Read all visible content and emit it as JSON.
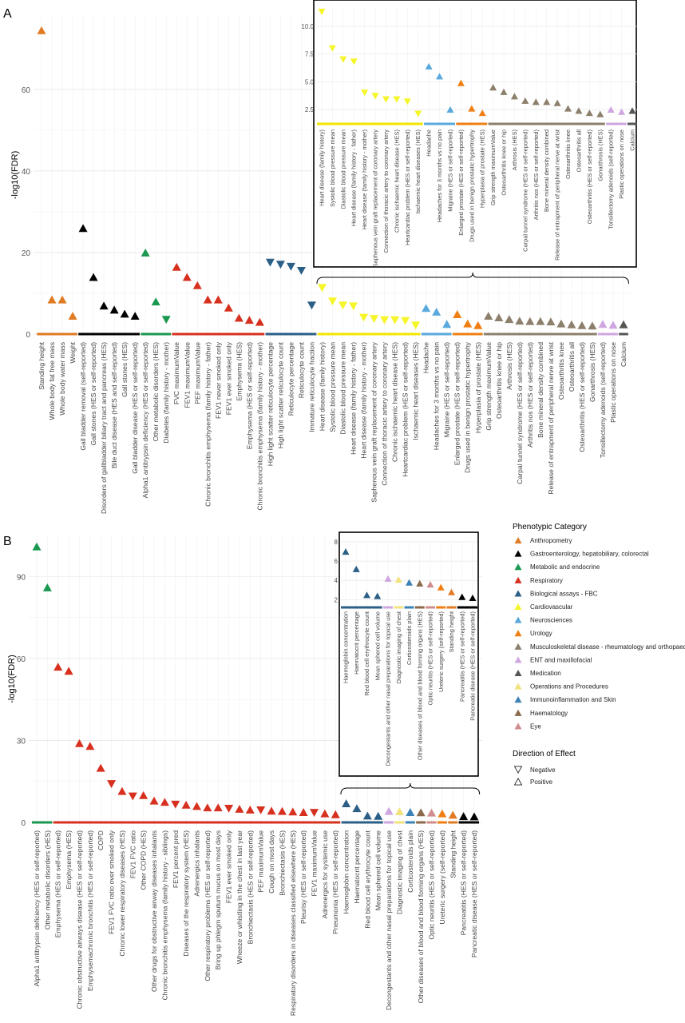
{
  "palette": {
    "Anthropometry": "#e07b24",
    "Gastroenterology": "#000000",
    "Metabolic": "#1a9850",
    "Respiratory": "#d7301f",
    "FBC": "#2b5f86",
    "Cardiovascular": "#f5f52a",
    "Neurosciences": "#5aa9dc",
    "Urology": "#ef7f13",
    "Musculoskeletal": "#8c7f6c",
    "ENT": "#cfa6e0",
    "Medication": "#555555",
    "Operations": "#f1e27c",
    "Immuno": "#3b83b6",
    "Haematology": "#8b6a4c",
    "Eye": "#d08c8c"
  },
  "legend": {
    "title": "Phenotypic Category",
    "items": [
      {
        "label": "Anthropometry",
        "color": "#e07b24"
      },
      {
        "label": "Gastroenterology, hepatobiliary, colorectal",
        "color": "#000000"
      },
      {
        "label": "Metabolic and endocrine",
        "color": "#1a9850"
      },
      {
        "label": "Respiratory",
        "color": "#d7301f"
      },
      {
        "label": "Biological assays - FBC",
        "color": "#2b5f86"
      },
      {
        "label": "Cardiovascular",
        "color": "#f5f52a"
      },
      {
        "label": "Neurosciences",
        "color": "#5aa9dc"
      },
      {
        "label": "Urology",
        "color": "#ef7f13"
      },
      {
        "label": "Musculoskeletal disease - rheumatology and orthopaedics",
        "color": "#8c7f6c"
      },
      {
        "label": "ENT and maxillofacial",
        "color": "#cfa6e0"
      },
      {
        "label": "Medication",
        "color": "#555555"
      },
      {
        "label": "Operations and Procedures",
        "color": "#f1e27c"
      },
      {
        "label": "Immunoinflammation and Skin",
        "color": "#3b83b6"
      },
      {
        "label": "Haematology",
        "color": "#8b6a4c"
      },
      {
        "label": "Eye",
        "color": "#d08c8c"
      }
    ],
    "direction_title": "Direction of Effect",
    "directions": [
      {
        "label": "Negative",
        "shape": "down"
      },
      {
        "label": "Positive",
        "shape": "up"
      }
    ]
  },
  "chart_data": [
    {
      "panel_label": "A",
      "type": "scatter",
      "ylabel": "-log10(FDR)",
      "yticks": [
        0,
        20,
        40,
        60
      ],
      "ylim": [
        0,
        78
      ],
      "points": [
        {
          "label": "Standing height",
          "value": 74.5,
          "dir": "up",
          "cat": "Anthropometry"
        },
        {
          "label": "Whole body fat free mass",
          "value": 8.5,
          "dir": "up",
          "cat": "Anthropometry"
        },
        {
          "label": "Whole body water mass",
          "value": 8.5,
          "dir": "up",
          "cat": "Anthropometry"
        },
        {
          "label": "Weight",
          "value": 4.5,
          "dir": "up",
          "cat": "Anthropometry"
        },
        {
          "label": "Gall bladder removal (self-reported)",
          "value": 26,
          "dir": "up",
          "cat": "Gastroenterology"
        },
        {
          "label": "Gall stones (HES or self-reported)",
          "value": 14,
          "dir": "up",
          "cat": "Gastroenterology"
        },
        {
          "label": "Disorders of gallbladder biliary tract and pancreas (HES)",
          "value": 7,
          "dir": "up",
          "cat": "Gastroenterology"
        },
        {
          "label": "Bile duct disease (HES and self-reported)",
          "value": 6,
          "dir": "up",
          "cat": "Gastroenterology"
        },
        {
          "label": "Gall stones (HES)",
          "value": 5,
          "dir": "up",
          "cat": "Gastroenterology"
        },
        {
          "label": "Gall bladder disease (HES or self-reported)",
          "value": 4.5,
          "dir": "up",
          "cat": "Gastroenterology"
        },
        {
          "label": "Alpha1 antitrypsin deficiency (HES or self-reported)",
          "value": 20,
          "dir": "up",
          "cat": "Metabolic"
        },
        {
          "label": "Other metabolic disorders (HES)",
          "value": 8,
          "dir": "up",
          "cat": "Metabolic"
        },
        {
          "label": "Diabetes (family history - mother)",
          "value": 3.5,
          "dir": "down",
          "cat": "Metabolic"
        },
        {
          "label": "FVC maximumValue",
          "value": 16.5,
          "dir": "up",
          "cat": "Respiratory"
        },
        {
          "label": "FEV1 maximumValue",
          "value": 14,
          "dir": "up",
          "cat": "Respiratory"
        },
        {
          "label": "PEF maximumValue",
          "value": 12,
          "dir": "up",
          "cat": "Respiratory"
        },
        {
          "label": "Chronic bronchitis emphysema (family history - father)",
          "value": 8.5,
          "dir": "up",
          "cat": "Respiratory"
        },
        {
          "label": "FEV1 never smoked only",
          "value": 8.5,
          "dir": "up",
          "cat": "Respiratory"
        },
        {
          "label": "FEV1 ever smoked only",
          "value": 6.5,
          "dir": "up",
          "cat": "Respiratory"
        },
        {
          "label": "Emphysema (HES)",
          "value": 4,
          "dir": "up",
          "cat": "Respiratory"
        },
        {
          "label": "Emphysema (HES or self-reported)",
          "value": 3.5,
          "dir": "up",
          "cat": "Respiratory"
        },
        {
          "label": "Chronic bronchitis emphysema (family history - mother)",
          "value": 3,
          "dir": "up",
          "cat": "Respiratory"
        },
        {
          "label": "High light scatter reticulocyte percentage",
          "value": 17.5,
          "dir": "down",
          "cat": "FBC"
        },
        {
          "label": "High light scatter reticulocyte count",
          "value": 17,
          "dir": "down",
          "cat": "FBC"
        },
        {
          "label": "Reticulocyte percentage",
          "value": 16.5,
          "dir": "down",
          "cat": "FBC"
        },
        {
          "label": "Reticulocyte count",
          "value": 15.5,
          "dir": "down",
          "cat": "FBC"
        },
        {
          "label": "Immature reticulocyte fraction",
          "value": 7,
          "dir": "down",
          "cat": "FBC"
        },
        {
          "label": "Heart disease (family history)",
          "value": 11.3,
          "dir": "down",
          "cat": "Cardiovascular"
        },
        {
          "label": "Systolic blood pressure mean",
          "value": 8,
          "dir": "down",
          "cat": "Cardiovascular"
        },
        {
          "label": "Diastolic blood pressure mean",
          "value": 7,
          "dir": "down",
          "cat": "Cardiovascular"
        },
        {
          "label": "Heart disease (family history - father)",
          "value": 6.8,
          "dir": "down",
          "cat": "Cardiovascular"
        },
        {
          "label": "Heart disease (family history - mother)",
          "value": 4,
          "dir": "down",
          "cat": "Cardiovascular"
        },
        {
          "label": "Saphenous vein graft replacement of coronary artery",
          "value": 3.7,
          "dir": "down",
          "cat": "Cardiovascular"
        },
        {
          "label": "Connection of thoracic artery to coronary artery",
          "value": 3.4,
          "dir": "down",
          "cat": "Cardiovascular"
        },
        {
          "label": "Chronic ischaemic heart disease (HES)",
          "value": 3.4,
          "dir": "down",
          "cat": "Cardiovascular"
        },
        {
          "label": "Heartcardiac problem (HES or self-reported)",
          "value": 3.2,
          "dir": "down",
          "cat": "Cardiovascular"
        },
        {
          "label": "Ischaemic heart diseases (HES)",
          "value": 2.1,
          "dir": "down",
          "cat": "Cardiovascular"
        },
        {
          "label": "Headache",
          "value": 6.4,
          "dir": "up",
          "cat": "Neurosciences"
        },
        {
          "label": "Headaches for 3 months vs no pain",
          "value": 5.5,
          "dir": "up",
          "cat": "Neurosciences"
        },
        {
          "label": "Migraine (HES or self-reported)",
          "value": 2.5,
          "dir": "up",
          "cat": "Neurosciences"
        },
        {
          "label": "Enlarged prostate (HES or self-reported)",
          "value": 4.9,
          "dir": "up",
          "cat": "Urology"
        },
        {
          "label": "Drugs used in benign prostatic hypertrophy",
          "value": 2.6,
          "dir": "up",
          "cat": "Urology"
        },
        {
          "label": "Hyperplasia of prostate (HES)",
          "value": 2.2,
          "dir": "up",
          "cat": "Urology"
        },
        {
          "label": "Grip strength maximumValue",
          "value": 4.5,
          "dir": "up",
          "cat": "Musculoskeletal"
        },
        {
          "label": "Osteoarthritis knee or hip",
          "value": 4.1,
          "dir": "up",
          "cat": "Musculoskeletal"
        },
        {
          "label": "Arthrosis (HES)",
          "value": 3.7,
          "dir": "up",
          "cat": "Musculoskeletal"
        },
        {
          "label": "Carpal tunnel syndrome (HES or self-reported)",
          "value": 3.3,
          "dir": "up",
          "cat": "Musculoskeletal"
        },
        {
          "label": "Arthritis nos (HES or self-reported)",
          "value": 3.2,
          "dir": "up",
          "cat": "Musculoskeletal"
        },
        {
          "label": "Bone mineral density combined",
          "value": 3.2,
          "dir": "up",
          "cat": "Musculoskeletal"
        },
        {
          "label": "Release of entrapment of peripheral nerve at wrist",
          "value": 3.1,
          "dir": "up",
          "cat": "Musculoskeletal"
        },
        {
          "label": "Osteoarthritis knee",
          "value": 2.6,
          "dir": "up",
          "cat": "Musculoskeletal"
        },
        {
          "label": "Osteoarthritis all",
          "value": 2.4,
          "dir": "up",
          "cat": "Musculoskeletal"
        },
        {
          "label": "Osteoarthritis (HES or self-reported)",
          "value": 2.2,
          "dir": "up",
          "cat": "Musculoskeletal"
        },
        {
          "label": "Gonarthrosis (HES)",
          "value": 2.1,
          "dir": "up",
          "cat": "Musculoskeletal"
        },
        {
          "label": "Tonsillectomy adenoids (self-reported)",
          "value": 2.5,
          "dir": "up",
          "cat": "ENT"
        },
        {
          "label": "Plastic operations on nose",
          "value": 2.3,
          "dir": "up",
          "cat": "ENT"
        },
        {
          "label": "Calcium",
          "value": 2.4,
          "dir": "up",
          "cat": "Medication"
        }
      ],
      "inset": {
        "from_index": 27,
        "ylim": [
          1.2,
          11.8
        ],
        "yticks": [
          "2.5",
          "5.0",
          "7.5",
          "10.0"
        ]
      }
    },
    {
      "panel_label": "B",
      "type": "scatter",
      "ylabel": "-log10(FDR)",
      "yticks": [
        0,
        30,
        60,
        90
      ],
      "ylim": [
        0,
        105
      ],
      "points": [
        {
          "label": "Alpha1 antitrypsin deficiency (HES or self-reported)",
          "value": 101,
          "dir": "up",
          "cat": "Metabolic"
        },
        {
          "label": "Other metabolic disorders (HES)",
          "value": 86,
          "dir": "up",
          "cat": "Metabolic"
        },
        {
          "label": "Emphysema (HES or self-reported)",
          "value": 57,
          "dir": "up",
          "cat": "Respiratory"
        },
        {
          "label": "Emphysema (HES)",
          "value": 55.5,
          "dir": "up",
          "cat": "Respiratory"
        },
        {
          "label": "Chronic obstructive airways disease (HES or self-reported)",
          "value": 29,
          "dir": "up",
          "cat": "Respiratory"
        },
        {
          "label": "Emphysemachronic bronchitis (HES or self-reported)",
          "value": 28,
          "dir": "up",
          "cat": "Respiratory"
        },
        {
          "label": "COPD",
          "value": 20,
          "dir": "up",
          "cat": "Respiratory"
        },
        {
          "label": "FEV1 FVC ratio over smoked only",
          "value": 14,
          "dir": "down",
          "cat": "Respiratory"
        },
        {
          "label": "Chronic lower respiratory diseases (HES)",
          "value": 11.5,
          "dir": "up",
          "cat": "Respiratory"
        },
        {
          "label": "FEV1 FVC ratio",
          "value": 9.5,
          "dir": "down",
          "cat": "Respiratory"
        },
        {
          "label": "Other COPD (HES)",
          "value": 10,
          "dir": "up",
          "cat": "Respiratory"
        },
        {
          "label": "Other drugs for obstructive airway diseases inhalants",
          "value": 8,
          "dir": "up",
          "cat": "Respiratory"
        },
        {
          "label": "Chronic bronchitis emphysema (family history - siblings)",
          "value": 7.5,
          "dir": "up",
          "cat": "Respiratory"
        },
        {
          "label": "FEV1 percent pred",
          "value": 6.5,
          "dir": "down",
          "cat": "Respiratory"
        },
        {
          "label": "Diseases of the respiratory system (HES)",
          "value": 6.5,
          "dir": "up",
          "cat": "Respiratory"
        },
        {
          "label": "Adrenergics inhalants",
          "value": 6,
          "dir": "up",
          "cat": "Respiratory"
        },
        {
          "label": "Other respiratory problems (HES or self-reported)",
          "value": 5.5,
          "dir": "up",
          "cat": "Respiratory"
        },
        {
          "label": "Bring up phlegm sputum mucus on most days",
          "value": 5.5,
          "dir": "up",
          "cat": "Respiratory"
        },
        {
          "label": "FEV1 ever smoked only",
          "value": 5,
          "dir": "down",
          "cat": "Respiratory"
        },
        {
          "label": "Wheeze or whistling in the chest in last year",
          "value": 5,
          "dir": "up",
          "cat": "Respiratory"
        },
        {
          "label": "Bronchiectasis (HES or self-reported)",
          "value": 4.7,
          "dir": "up",
          "cat": "Respiratory"
        },
        {
          "label": "PEF maximumValue",
          "value": 4.4,
          "dir": "down",
          "cat": "Respiratory"
        },
        {
          "label": "Cough on most days",
          "value": 4.3,
          "dir": "up",
          "cat": "Respiratory"
        },
        {
          "label": "Bronchiectasis (HES)",
          "value": 4.2,
          "dir": "up",
          "cat": "Respiratory"
        },
        {
          "label": "Respiratory disorders in diseases classified elsewhere (HES)",
          "value": 4,
          "dir": "up",
          "cat": "Respiratory"
        },
        {
          "label": "Pleurisy (HES or self-reported)",
          "value": 3.8,
          "dir": "up",
          "cat": "Respiratory"
        },
        {
          "label": "FEV1 maximumValue",
          "value": 3.5,
          "dir": "down",
          "cat": "Respiratory"
        },
        {
          "label": "Adrenergics for systemic use",
          "value": 3.3,
          "dir": "up",
          "cat": "Respiratory"
        },
        {
          "label": "Pneumonia (HES or self-reported)",
          "value": 3,
          "dir": "up",
          "cat": "Respiratory"
        },
        {
          "label": "Haemoglobin concentration",
          "value": 7,
          "dir": "up",
          "cat": "FBC"
        },
        {
          "label": "Haematocrit percentage",
          "value": 5.2,
          "dir": "up",
          "cat": "FBC"
        },
        {
          "label": "Red blood cell erythrocyte count",
          "value": 2.5,
          "dir": "up",
          "cat": "FBC"
        },
        {
          "label": "Mean sphered cell volume",
          "value": 2.4,
          "dir": "up",
          "cat": "FBC"
        },
        {
          "label": "Decongestants and other nasal preparations for topical use",
          "value": 4.2,
          "dir": "up",
          "cat": "ENT"
        },
        {
          "label": "Diagnostic imaging of chest",
          "value": 4.1,
          "dir": "up",
          "cat": "Operations"
        },
        {
          "label": "Corticosteroids plain",
          "value": 3.8,
          "dir": "up",
          "cat": "Immuno"
        },
        {
          "label": "Other diseases of blood and blood forming organs (HES)",
          "value": 3.7,
          "dir": "up",
          "cat": "Haematology"
        },
        {
          "label": "Optic neuritis (HES or self-reported)",
          "value": 3.6,
          "dir": "up",
          "cat": "Eye"
        },
        {
          "label": "Ureteric surgery (self-reported)",
          "value": 3.3,
          "dir": "up",
          "cat": "Urology"
        },
        {
          "label": "Standing height",
          "value": 2.8,
          "dir": "up",
          "cat": "Anthropometry"
        },
        {
          "label": "Pancreatitis (HES or self-reported)",
          "value": 2.3,
          "dir": "up",
          "cat": "Gastroenterology"
        },
        {
          "label": "Pancreatic disease (HES or self-reported)",
          "value": 2.2,
          "dir": "up",
          "cat": "Gastroenterology"
        }
      ],
      "inset": {
        "from_index": 29,
        "ylim": [
          1.2,
          8
        ],
        "yticks": [
          "2",
          "4",
          "6",
          "8"
        ]
      }
    }
  ]
}
